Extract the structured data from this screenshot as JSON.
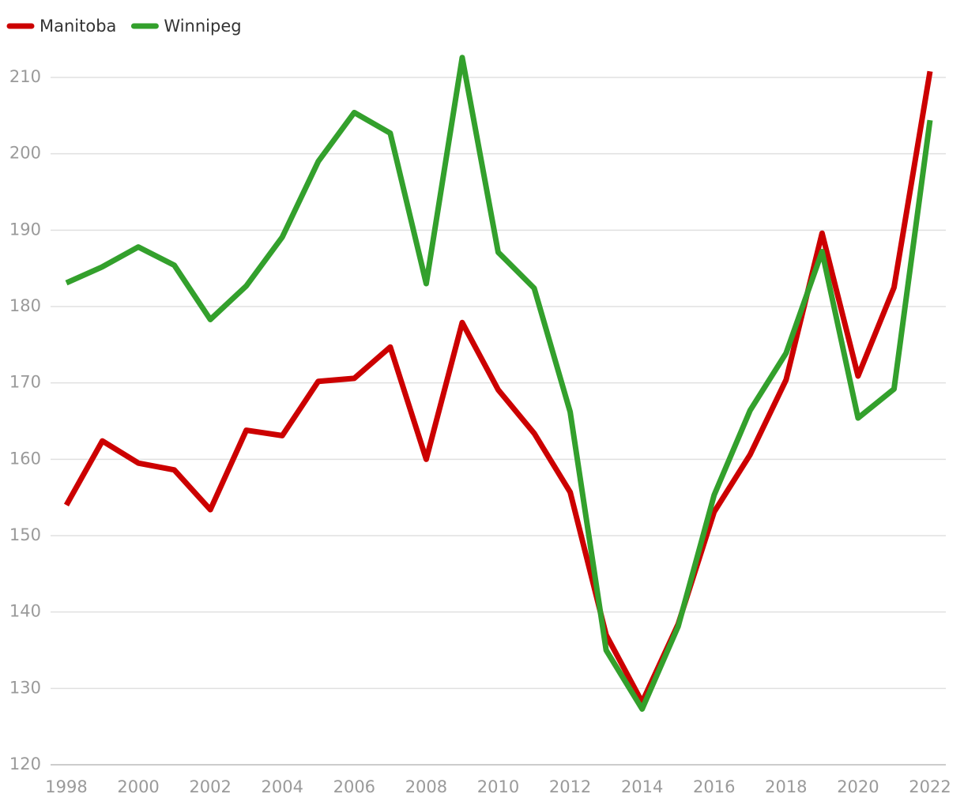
{
  "chart_data": {
    "type": "line",
    "x": [
      1998,
      1999,
      2000,
      2001,
      2002,
      2003,
      2004,
      2005,
      2006,
      2007,
      2008,
      2009,
      2010,
      2011,
      2012,
      2013,
      2014,
      2015,
      2016,
      2017,
      2018,
      2019,
      2020,
      2021,
      2022
    ],
    "series": [
      {
        "name": "Manitoba",
        "color": "#cc0000",
        "values": [
          154,
          162.4,
          159.5,
          158.6,
          153.4,
          163.8,
          163.1,
          170.2,
          170.6,
          174.7,
          160.0,
          177.9,
          169.1,
          163.4,
          155.7,
          137.0,
          128.2,
          138.4,
          153.1,
          160.6,
          170.4,
          189.6,
          170.9,
          182.5,
          210.8
        ]
      },
      {
        "name": "Winnipeg",
        "color": "#33a02c",
        "values": [
          183.1,
          185.2,
          187.8,
          185.4,
          178.3,
          182.7,
          189.1,
          199.0,
          205.4,
          202.7,
          183.0,
          212.6,
          187.1,
          182.4,
          166.2,
          135.0,
          127.3,
          138.1,
          155.3,
          166.4,
          173.9,
          187.2,
          165.4,
          169.2,
          204.4
        ]
      }
    ],
    "xlim": [
      1998,
      2022
    ],
    "xticks": [
      1998,
      2000,
      2002,
      2004,
      2006,
      2008,
      2010,
      2012,
      2014,
      2016,
      2018,
      2020,
      2022
    ],
    "ylim": [
      120,
      213
    ],
    "yticks": [
      120,
      130,
      140,
      150,
      160,
      170,
      180,
      190,
      200,
      210
    ],
    "grid": true,
    "legend": "top-left"
  }
}
